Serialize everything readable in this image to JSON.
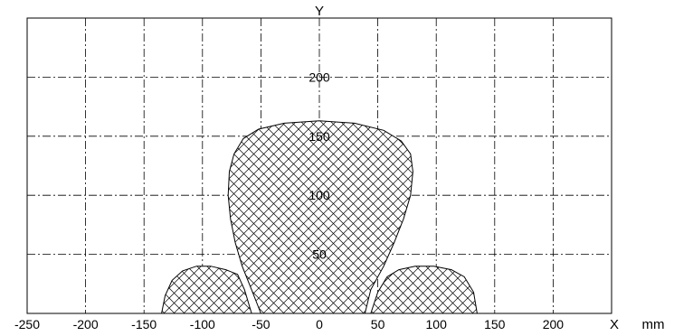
{
  "chart_data": {
    "type": "area",
    "title": "",
    "xlabel": "X",
    "ylabel": "Y",
    "unit": "mm",
    "xlim": [
      -250,
      250
    ],
    "ylim": [
      0,
      250
    ],
    "x_ticks": [
      -250,
      -200,
      -150,
      -100,
      -50,
      0,
      50,
      100,
      150,
      200
    ],
    "y_ticks": [
      50,
      100,
      150,
      200
    ],
    "x_tick_labels": [
      "-250",
      "-200",
      "-150",
      "-100",
      "-50",
      "0",
      "50",
      "100",
      "150",
      "200"
    ],
    "y_tick_labels": [
      "50",
      "100",
      "150",
      "200"
    ],
    "grid": true,
    "fill_pattern": "crosshatch",
    "regions": [
      {
        "name": "",
        "points": [
          [
            -50,
            0
          ],
          [
            -58,
            20
          ],
          [
            -66,
            40
          ],
          [
            -72,
            60
          ],
          [
            -76,
            80
          ],
          [
            -78,
            100
          ],
          [
            -77,
            120
          ],
          [
            -73,
            135
          ],
          [
            -65,
            148
          ],
          [
            -52,
            156
          ],
          [
            -30,
            161
          ],
          [
            0,
            163
          ],
          [
            30,
            161
          ],
          [
            55,
            155
          ],
          [
            70,
            146
          ],
          [
            78,
            135
          ],
          [
            80,
            120
          ],
          [
            78,
            100
          ],
          [
            72,
            80
          ],
          [
            64,
            60
          ],
          [
            55,
            40
          ],
          [
            44,
            20
          ],
          [
            39,
            0
          ]
        ]
      },
      {
        "name": "",
        "points": [
          [
            -135,
            0
          ],
          [
            -132,
            15
          ],
          [
            -126,
            28
          ],
          [
            -117,
            36
          ],
          [
            -105,
            40
          ],
          [
            -93,
            40
          ],
          [
            -80,
            37
          ],
          [
            -70,
            33
          ],
          [
            -64,
            20
          ],
          [
            -58,
            0
          ]
        ]
      },
      {
        "name": "",
        "points": [
          [
            44,
            0
          ],
          [
            50,
            18
          ],
          [
            58,
            31
          ],
          [
            68,
            37
          ],
          [
            82,
            40
          ],
          [
            98,
            40
          ],
          [
            113,
            37
          ],
          [
            124,
            31
          ],
          [
            132,
            18
          ],
          [
            135,
            0
          ]
        ]
      }
    ]
  }
}
